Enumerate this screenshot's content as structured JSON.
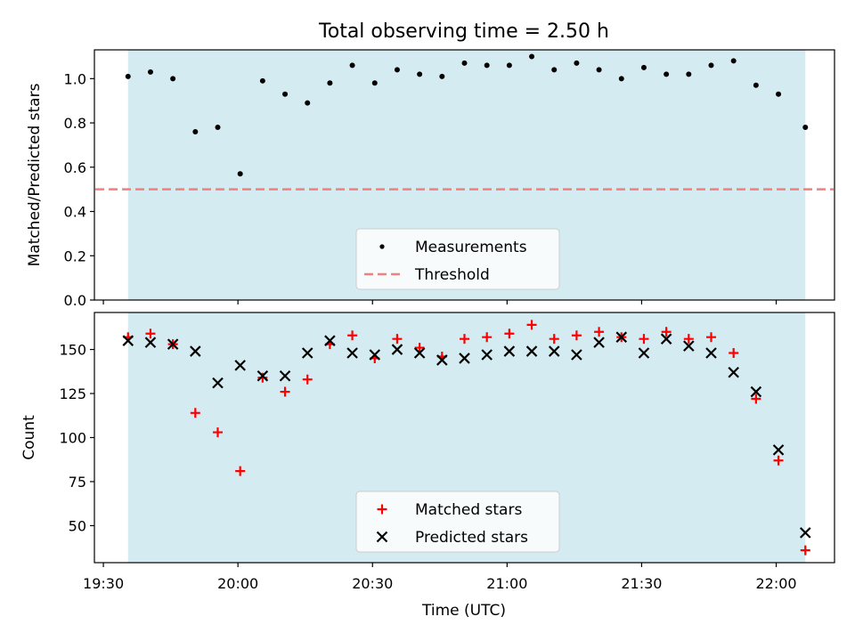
{
  "figure": {
    "title": "Total observing time = 2.50 h",
    "xlabel": "Time (UTC)",
    "x_tick_labels": [
      "19:30",
      "20:00",
      "20:30",
      "21:00",
      "21:30",
      "22:00"
    ],
    "x_tick_values_min": [
      0,
      30,
      60,
      90,
      120,
      150
    ]
  },
  "chart_data": [
    {
      "type": "scatter",
      "panel": "top",
      "ylabel": "Matched/Predicted stars",
      "ylim": [
        0.0,
        1.13
      ],
      "y_ticks": [
        0.0,
        0.2,
        0.4,
        0.6,
        0.8,
        1.0
      ],
      "y_tick_labels": [
        "0.0",
        "0.2",
        "0.4",
        "0.6",
        "0.8",
        "1.0"
      ],
      "xlim_min": [
        -2,
        163
      ],
      "shaded_span": [
        5.5,
        156.5
      ],
      "shade_color": "#d4ebf1",
      "threshold": 0.5,
      "threshold_color": "#f08080",
      "legend": {
        "placement": "lower center",
        "entries": [
          "Measurements",
          "Threshold"
        ]
      },
      "x": [
        "19:35",
        "19:40",
        "19:45",
        "19:50",
        "19:55",
        "20:00",
        "20:05",
        "20:10",
        "20:15",
        "20:20",
        "20:25",
        "20:30",
        "20:35",
        "20:40",
        "20:45",
        "20:50",
        "20:55",
        "21:00",
        "21:05",
        "21:10",
        "21:15",
        "21:20",
        "21:25",
        "21:30",
        "21:35",
        "21:40",
        "21:45",
        "21:50",
        "21:55",
        "22:00",
        "22:06"
      ],
      "x_min": [
        5.5,
        10.5,
        15.5,
        20.5,
        25.5,
        30.5,
        35.5,
        40.5,
        45.5,
        50.5,
        55.5,
        60.5,
        65.5,
        70.5,
        75.5,
        80.5,
        85.5,
        90.5,
        95.5,
        100.5,
        105.5,
        110.5,
        115.5,
        120.5,
        125.5,
        130.5,
        135.5,
        140.5,
        145.5,
        150.5,
        156.5
      ],
      "series": [
        {
          "name": "Measurements",
          "marker": "dot",
          "color": "#000000",
          "values": [
            1.01,
            1.03,
            1.0,
            0.76,
            0.78,
            0.57,
            0.99,
            0.93,
            0.89,
            0.98,
            1.06,
            0.98,
            1.04,
            1.02,
            1.01,
            1.07,
            1.06,
            1.06,
            1.1,
            1.04,
            1.07,
            1.04,
            1.0,
            1.05,
            1.02,
            1.02,
            1.06,
            1.08,
            0.97,
            0.93,
            0.78
          ]
        }
      ]
    },
    {
      "type": "scatter",
      "panel": "bottom",
      "ylabel": "Count",
      "ylim": [
        29,
        171
      ],
      "y_ticks": [
        50,
        75,
        100,
        125,
        150
      ],
      "y_tick_labels": [
        "50",
        "75",
        "100",
        "125",
        "150"
      ],
      "xlim_min": [
        -2,
        163
      ],
      "shaded_span": [
        5.5,
        156.5
      ],
      "shade_color": "#d4ebf1",
      "legend": {
        "placement": "lower center",
        "entries": [
          "Matched stars",
          "Predicted stars"
        ]
      },
      "x": [
        "19:35",
        "19:40",
        "19:45",
        "19:50",
        "19:55",
        "20:00",
        "20:05",
        "20:10",
        "20:15",
        "20:20",
        "20:25",
        "20:30",
        "20:35",
        "20:40",
        "20:45",
        "20:50",
        "20:55",
        "21:00",
        "21:05",
        "21:10",
        "21:15",
        "21:20",
        "21:25",
        "21:30",
        "21:35",
        "21:40",
        "21:45",
        "21:50",
        "21:55",
        "22:00",
        "22:06"
      ],
      "x_min": [
        5.5,
        10.5,
        15.5,
        20.5,
        25.5,
        30.5,
        35.5,
        40.5,
        45.5,
        50.5,
        55.5,
        60.5,
        65.5,
        70.5,
        75.5,
        80.5,
        85.5,
        90.5,
        95.5,
        100.5,
        105.5,
        110.5,
        115.5,
        120.5,
        125.5,
        130.5,
        135.5,
        140.5,
        145.5,
        150.5,
        156.5
      ],
      "series": [
        {
          "name": "Matched stars",
          "marker": "plus",
          "color": "#ff0000",
          "values": [
            157,
            159,
            153,
            114,
            103,
            81,
            134,
            126,
            133,
            153,
            158,
            145,
            156,
            151,
            146,
            156,
            157,
            159,
            164,
            156,
            158,
            160,
            157,
            156,
            160,
            156,
            157,
            148,
            122,
            87,
            36
          ]
        },
        {
          "name": "Predicted stars",
          "marker": "x",
          "color": "#000000",
          "values": [
            155,
            154,
            153,
            149,
            131,
            141,
            135,
            135,
            148,
            155,
            148,
            147,
            150,
            148,
            144,
            145,
            147,
            149,
            149,
            149,
            147,
            154,
            157,
            148,
            156,
            152,
            148,
            137,
            126,
            93,
            46
          ]
        }
      ]
    }
  ]
}
